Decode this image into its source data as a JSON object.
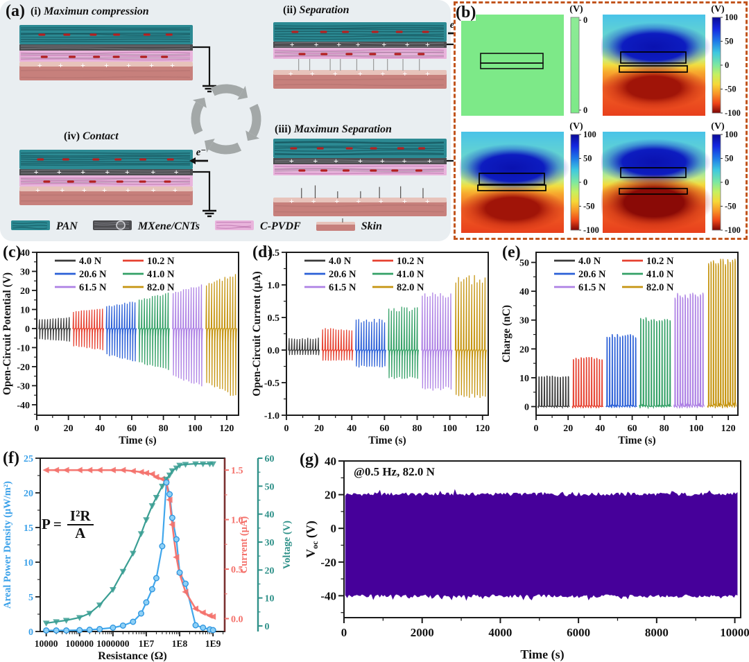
{
  "panel_a": {
    "label": "(a)",
    "bg": "#e9eef1",
    "charge_plus": "+",
    "charge_minus": "−",
    "states": [
      {
        "id": "i",
        "num": "(i)",
        "title": "Maximun compression",
        "electron": null
      },
      {
        "id": "ii",
        "num": "(ii)",
        "title": "Separation",
        "electron": "e⁻"
      },
      {
        "id": "iv",
        "num": "(iv)",
        "title": "Contact",
        "electron": "e⁻"
      },
      {
        "id": "iii",
        "num": "(iii)",
        "title": "Maximun Separation",
        "electron": null
      }
    ],
    "legend": [
      {
        "id": "pan",
        "label": "PAN",
        "color": "#2c8a93"
      },
      {
        "id": "mxene",
        "label": "MXene/CNTs",
        "color": "#4d4d50"
      },
      {
        "id": "cpvdf",
        "label": "C-PVDF",
        "color": "#e9b4dc"
      },
      {
        "id": "skin",
        "label": "Skin",
        "color": "#c7807c"
      }
    ]
  },
  "panel_b": {
    "label": "(b)",
    "border_color": "#c2551e",
    "volt_unit": "(V)",
    "quadrants": [
      {
        "id": "initial",
        "variant": "flat",
        "cb": "flat",
        "cb_ticks": [
          "0",
          "0"
        ]
      },
      {
        "id": "separation",
        "variant": "small-gap",
        "cb": "jet",
        "cb_ticks": [
          "100",
          "50",
          "0",
          "-50",
          "-100"
        ]
      },
      {
        "id": "contact",
        "variant": "contact",
        "cb": "jet",
        "cb_ticks": [
          "100",
          "50",
          "0",
          "-50",
          "-100"
        ]
      },
      {
        "id": "max-separation",
        "variant": "big-gap",
        "cb": "jet",
        "cb_ticks": [
          "100",
          "50",
          "0",
          "-50",
          "-100"
        ]
      }
    ]
  },
  "chart_data": [
    {
      "id": "c",
      "panel_label": "(c)",
      "type": "line",
      "style": "spike",
      "xlabel": "Time (s)",
      "ylabel": "Open-Circuit Potential (V)",
      "xlim": [
        0,
        127.5
      ],
      "ylim": [
        -45.5,
        40
      ],
      "xticks": [
        0,
        20,
        40,
        60,
        80,
        100,
        120
      ],
      "yticks": [
        -40,
        -30,
        -20,
        -10,
        0,
        10,
        20,
        30,
        40
      ],
      "x_minor": 10,
      "y_minor": 5,
      "tick_decimals": 0,
      "series": [
        {
          "name": "4.0 N",
          "color": "#3a3a3a",
          "window": [
            1,
            21.5
          ],
          "cycles": 12,
          "peak": 6,
          "trough": 7
        },
        {
          "name": "10.2 N",
          "color": "#e6402f",
          "window": [
            22.5,
            42.5
          ],
          "cycles": 12,
          "peak": 11,
          "trough": 11.5
        },
        {
          "name": "20.6 N",
          "color": "#2a5fd7",
          "window": [
            43.5,
            63
          ],
          "cycles": 12,
          "peak": 14.5,
          "trough": 17.5
        },
        {
          "name": "41.0 N",
          "color": "#33a066",
          "window": [
            64,
            84
          ],
          "cycles": 12,
          "peak": 19,
          "trough": 22.5
        },
        {
          "name": "61.5 N",
          "color": "#ad80e4",
          "window": [
            85.5,
            105
          ],
          "cycles": 12,
          "peak": 23.5,
          "trough": 31
        },
        {
          "name": "82.0 N",
          "color": "#c5940f",
          "window": [
            106.5,
            126.5
          ],
          "cycles": 12,
          "peak": 29,
          "trough": 36.5
        }
      ]
    },
    {
      "id": "d",
      "panel_label": "(d)",
      "type": "line",
      "style": "spike",
      "xlabel": "Time (s)",
      "ylabel": "Open-Circuit Current (μA)",
      "xlim": [
        0,
        123.5
      ],
      "ylim": [
        -1.0,
        1.5
      ],
      "xticks": [
        0,
        20,
        40,
        60,
        80,
        100,
        120
      ],
      "yticks": [
        -1.0,
        -0.5,
        0.0,
        0.5,
        1.0,
        1.5
      ],
      "x_minor": 10,
      "y_minor": 0.25,
      "tick_decimals": 1,
      "series": [
        {
          "name": "4.0 N",
          "color": "#3a3a3a",
          "window": [
            1,
            20.5
          ],
          "cycles": 12,
          "peak": 0.19,
          "trough": 0.08
        },
        {
          "name": "10.2 N",
          "color": "#e6402f",
          "window": [
            21.5,
            41
          ],
          "cycles": 12,
          "peak": 0.34,
          "trough": 0.17
        },
        {
          "name": "20.6 N",
          "color": "#2a5fd7",
          "window": [
            42,
            61
          ],
          "cycles": 12,
          "peak": 0.48,
          "trough": 0.27
        },
        {
          "name": "41.0 N",
          "color": "#33a066",
          "window": [
            62,
            81
          ],
          "cycles": 12,
          "peak": 0.67,
          "trough": 0.46
        },
        {
          "name": "61.5 N",
          "color": "#ad80e4",
          "window": [
            82.5,
            101.5
          ],
          "cycles": 12,
          "peak": 0.9,
          "trough": 0.63
        },
        {
          "name": "82.0 N",
          "color": "#c5940f",
          "window": [
            103,
            122.5
          ],
          "cycles": 12,
          "peak": 1.15,
          "trough": 0.76
        }
      ]
    },
    {
      "id": "e",
      "panel_label": "(e)",
      "type": "line",
      "style": "pulse",
      "xlabel": "Time (s)",
      "ylabel": "Charge (nC)",
      "xlim": [
        0,
        126
      ],
      "ylim": [
        -3,
        53.5
      ],
      "xticks": [
        0,
        20,
        40,
        60,
        80,
        100,
        120
      ],
      "yticks": [
        0,
        10,
        20,
        30,
        40,
        50
      ],
      "x_minor": 10,
      "y_minor": 5,
      "tick_decimals": 0,
      "series": [
        {
          "name": "4.0 N",
          "color": "#3a3a3a",
          "window": [
            1,
            21
          ],
          "cycles": 12,
          "peak": 10.7,
          "base_noise": 0.5
        },
        {
          "name": "10.2 N",
          "color": "#e6402f",
          "window": [
            22.5,
            42
          ],
          "cycles": 12,
          "peak": 17.2,
          "base_noise": 0.7
        },
        {
          "name": "20.6 N",
          "color": "#2a5fd7",
          "window": [
            43.5,
            63
          ],
          "cycles": 12,
          "peak": 25.2,
          "base_noise": 1.0
        },
        {
          "name": "41.0 N",
          "color": "#33a066",
          "window": [
            64.5,
            84.5
          ],
          "cycles": 12,
          "peak": 31.0,
          "base_noise": 1.3
        },
        {
          "name": "61.5 N",
          "color": "#ad80e4",
          "window": [
            86,
            105
          ],
          "cycles": 12,
          "peak": 39.5,
          "base_noise": 1.7
        },
        {
          "name": "82.0 N",
          "color": "#c5940f",
          "window": [
            107,
            125
          ],
          "cycles": 12,
          "peak": 51.5,
          "base_noise": 2.8
        }
      ]
    },
    {
      "id": "f",
      "panel_label": "(f)",
      "type": "line",
      "x_log": true,
      "xlabel": "Resistance (Ω)",
      "xtick_labels": [
        "10000",
        "100000",
        "1000000",
        "1E7",
        "1E8",
        "1E9"
      ],
      "xtick_values": [
        10000,
        100000,
        1000000,
        10000000,
        100000000,
        1000000000
      ],
      "xlim_log": [
        3.82,
        9.35
      ],
      "formula": {
        "lhs": "P =",
        "num": "I²R",
        "den": "A"
      },
      "axes": {
        "power": {
          "label": "Areal Power Density (μW/m²)",
          "color": "#3ba1e9",
          "lim": [
            0,
            25
          ],
          "ticks": [
            0,
            5,
            10,
            15,
            20,
            25
          ],
          "minor": 2.5
        },
        "current": {
          "label": "Current (μA)",
          "color": "#f4716b",
          "lim": [
            -0.13,
            1.62
          ],
          "ticks": [
            0.0,
            0.5,
            1.0,
            1.5
          ],
          "minor": 0.25
        },
        "voltage": {
          "label": "Voltage (V)",
          "color": "#2f9189",
          "lim": [
            -2,
            60
          ],
          "ticks": [
            0,
            10,
            20,
            30,
            40,
            50,
            60
          ],
          "minor": 5
        }
      },
      "resistance": [
        10000,
        20000,
        40000,
        100000,
        200000,
        400000,
        1000000,
        2000000,
        4000000,
        7000000,
        10000000,
        15000000,
        20000000,
        30000000,
        40000000,
        50000000,
        60000000,
        80000000,
        100000000,
        150000000,
        300000000,
        500000000,
        800000000,
        1000000000
      ],
      "current_ua": [
        1.5,
        1.5,
        1.5,
        1.5,
        1.5,
        1.5,
        1.5,
        1.5,
        1.49,
        1.48,
        1.47,
        1.46,
        1.43,
        1.41,
        1.38,
        1.2,
        0.95,
        0.62,
        0.45,
        0.27,
        0.1,
        0.06,
        0.03,
        0.02
      ],
      "voltage_v": [
        1,
        1.5,
        2,
        3,
        4.5,
        7.5,
        13,
        19.5,
        26,
        33,
        38,
        43,
        46,
        50,
        52.5,
        54,
        55.5,
        56.5,
        57.5,
        57.8,
        58,
        58,
        58,
        58
      ],
      "power_uwm2": [
        0.15,
        0.15,
        0.15,
        0.2,
        0.25,
        0.35,
        0.55,
        0.85,
        1.4,
        2.6,
        4.2,
        6.1,
        7.7,
        12.3,
        21.5,
        19.8,
        16.4,
        13.3,
        8.5,
        6.9,
        0.9,
        0.55,
        0.3,
        0.2
      ]
    },
    {
      "id": "g",
      "panel_label": "(g)",
      "type": "line",
      "style": "band",
      "annotation": "@0.5 Hz, 82.0 N",
      "xlabel": "Time (s)",
      "ylabel_base": "V",
      "ylabel_sub": "oc",
      "ylabel_unit": " (V)",
      "xlim": [
        0,
        10150
      ],
      "ylim": [
        -53,
        40
      ],
      "xticks": [
        0,
        2000,
        4000,
        6000,
        8000,
        10000
      ],
      "yticks": [
        -40,
        -20,
        0,
        20,
        40
      ],
      "x_minor": 1000,
      "y_minor": 10,
      "tick_decimals": 0,
      "band": {
        "top": 20,
        "bottom": -40,
        "color": "#46009a",
        "start": 40,
        "end": 10060
      }
    }
  ]
}
